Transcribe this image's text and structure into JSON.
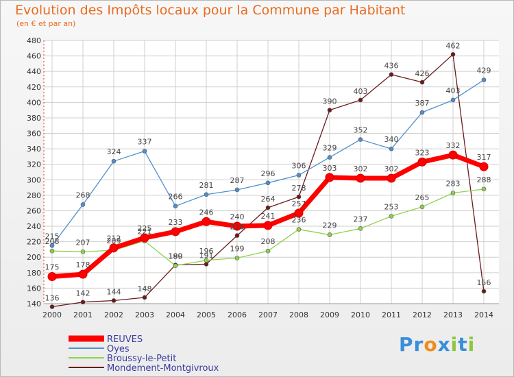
{
  "chart_data": {
    "type": "line",
    "title": "Evolution des Impôts locaux pour la Commune par Habitant",
    "subtitle": "(en € et par an)",
    "xlabel": "",
    "ylabel": "",
    "x": [
      "2000",
      "2001",
      "2002",
      "2003",
      "2004",
      "2005",
      "2006",
      "2007",
      "2008",
      "2009",
      "2010",
      "2011",
      "2012",
      "2013",
      "2014"
    ],
    "ylim": [
      140,
      480
    ],
    "yticks": [
      140,
      160,
      180,
      200,
      220,
      240,
      260,
      280,
      300,
      320,
      340,
      360,
      380,
      400,
      420,
      440,
      460,
      480
    ],
    "grid": true,
    "legend": "bottom-left",
    "series": [
      {
        "name": "REUVES",
        "color": "#ff0000",
        "values": [
          175,
          178,
          212,
          225,
          233,
          246,
          240,
          241,
          257,
          303,
          302,
          302,
          323,
          332,
          317
        ]
      },
      {
        "name": "Oyes",
        "color": "#4f8fcf",
        "values": [
          215,
          268,
          324,
          337,
          266,
          281,
          287,
          296,
          306,
          329,
          352,
          340,
          387,
          403,
          429
        ]
      },
      {
        "name": "Broussy-le-Petit",
        "color": "#8fd14f",
        "values": [
          208,
          207,
          209,
          221,
          189,
          196,
          199,
          208,
          236,
          229,
          237,
          253,
          265,
          283,
          288
        ]
      },
      {
        "name": "Mondement-Montgivroux",
        "color": "#6b1a1a",
        "values": [
          136,
          142,
          144,
          148,
          190,
          191,
          228,
          264,
          278,
          390,
          403,
          436,
          426,
          462,
          156
        ]
      }
    ]
  },
  "logo": {
    "letters": [
      "P",
      "r",
      "o",
      "x",
      "i",
      "t",
      "i"
    ],
    "colors": [
      "#3a8fd8",
      "#3a8fd8",
      "#f08c1c",
      "#3a8fd8",
      "#8cc63f",
      "#3a8fd8",
      "#8cc63f"
    ]
  }
}
